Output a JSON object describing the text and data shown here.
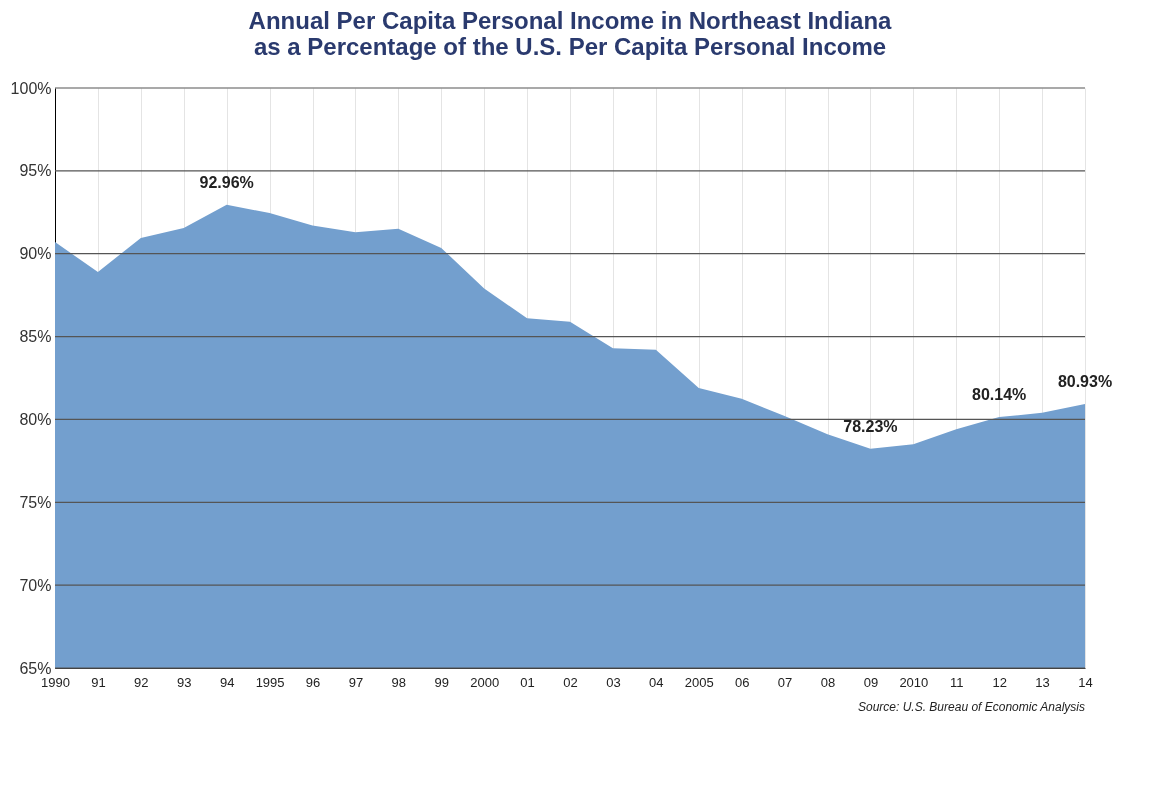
{
  "chart_data": {
    "type": "area",
    "title": [
      "Annual Per Capita Personal Income in Northeast Indiana",
      "as a Percentage of the U.S. Per Capita Personal Income"
    ],
    "categories": [
      "1990",
      "91",
      "92",
      "93",
      "94",
      "1995",
      "96",
      "97",
      "98",
      "99",
      "2000",
      "01",
      "02",
      "03",
      "04",
      "2005",
      "06",
      "07",
      "08",
      "09",
      "2010",
      "11",
      "12",
      "13",
      "14"
    ],
    "series": [
      {
        "color": "#739fce",
        "values": [
          90.7,
          88.9,
          90.95,
          91.55,
          92.96,
          92.45,
          91.7,
          91.3,
          91.5,
          90.35,
          87.9,
          86.1,
          85.9,
          84.3,
          84.2,
          81.9,
          81.25,
          80.2,
          79.1,
          78.23,
          78.5,
          79.4,
          80.14,
          80.4,
          80.93
        ],
        "value_labels": [
          null,
          null,
          null,
          null,
          "92.96%",
          null,
          null,
          null,
          null,
          null,
          null,
          null,
          null,
          null,
          null,
          null,
          null,
          null,
          null,
          "78.23%",
          null,
          null,
          "80.14%",
          null,
          "80.93%"
        ]
      }
    ],
    "ylim": [
      65,
      100
    ],
    "yticks": [
      {
        "value": 65,
        "label": "65%"
      },
      {
        "value": 70,
        "label": "70%"
      },
      {
        "value": 75,
        "label": "75%"
      },
      {
        "value": 80,
        "label": "80%"
      },
      {
        "value": 85,
        "label": "85%"
      },
      {
        "value": 90,
        "label": "90%"
      },
      {
        "value": 95,
        "label": "95%"
      },
      {
        "value": 100,
        "label": "100%"
      }
    ],
    "grid": true,
    "annotations": [
      "Source: U.S. Bureau of Economic Analysis"
    ]
  }
}
